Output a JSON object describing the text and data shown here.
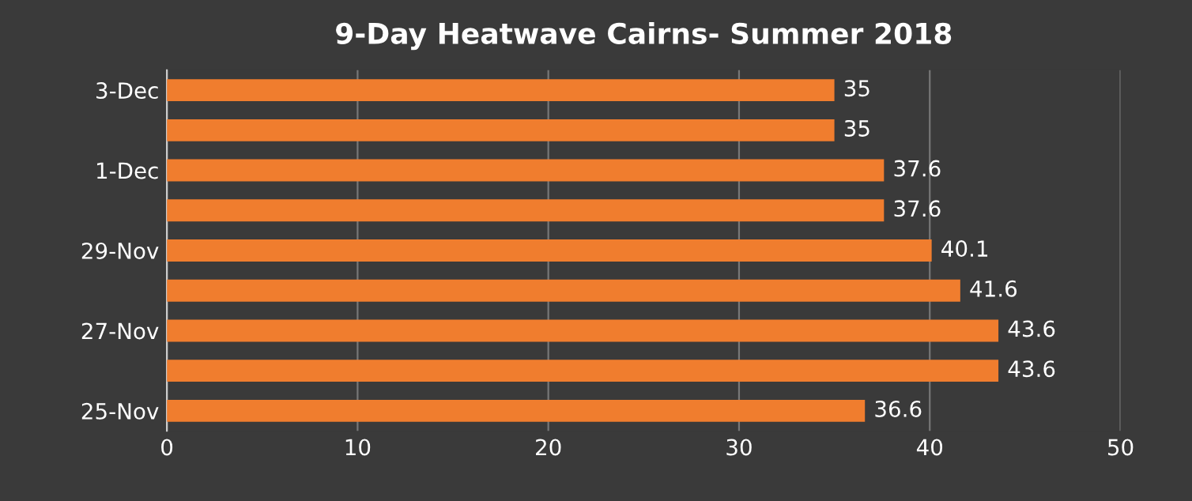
{
  "chart_data": {
    "type": "bar",
    "orientation": "horizontal",
    "title": "9-Day Heatwave Cairns- Summer 2018",
    "categories": [
      "3-Dec",
      null,
      "1-Dec",
      null,
      "29-Nov",
      null,
      "27-Nov",
      null,
      "25-Nov"
    ],
    "values": [
      35,
      35,
      37.6,
      37.6,
      40.1,
      41.6,
      43.6,
      43.6,
      36.6
    ],
    "color": "#f07d2e",
    "xlim": [
      0,
      50
    ],
    "xticks": [
      0,
      10,
      20,
      30,
      40,
      50
    ],
    "grid": "x",
    "data_labels": true
  }
}
